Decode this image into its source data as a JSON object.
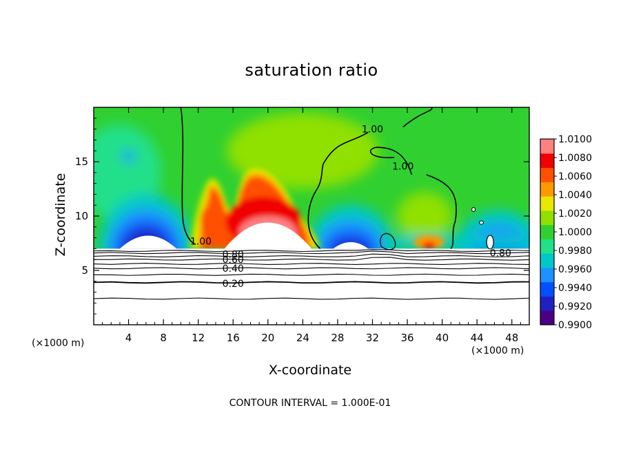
{
  "chart_data": {
    "type": "heatmap",
    "title": "saturation ratio",
    "xlabel": "X-coordinate",
    "ylabel": "Z-coordinate",
    "x_unit": "(×1000 m)",
    "contour_interval": "CONTOUR INTERVAL = 1.000E-01",
    "xlim": [
      0,
      50
    ],
    "ylim": [
      0,
      20
    ],
    "x_ticks": [
      4,
      8,
      12,
      16,
      20,
      24,
      28,
      32,
      36,
      40,
      44,
      48
    ],
    "y_ticks": [
      5,
      10,
      15
    ],
    "colorbar": {
      "min": 0.99,
      "max": 1.01,
      "tick_labels": [
        "1.0100",
        "1.0080",
        "1.0060",
        "1.0040",
        "1.0020",
        "1.0000",
        "0.9980",
        "0.9960",
        "0.9940",
        "0.9920",
        "0.9900"
      ],
      "colors": [
        "#4b0082",
        "#2020c0",
        "#0050ff",
        "#1e90ff",
        "#00c8c8",
        "#20e08a",
        "#30d030",
        "#90e000",
        "#e8e800",
        "#ff9900",
        "#ff5000",
        "#f00000",
        "#ff8080"
      ]
    },
    "contour_labels": [
      {
        "text": "1.00",
        "x": 32,
        "y": 18.0
      },
      {
        "text": "1.00",
        "x": 35.5,
        "y": 14.6
      },
      {
        "text": "1.00",
        "x": 12.3,
        "y": 7.7
      },
      {
        "text": "0.80",
        "x": 46.7,
        "y": 6.6
      },
      {
        "text": "0.80",
        "x": 16,
        "y": 6.5
      },
      {
        "text": "0.60",
        "x": 16,
        "y": 6.0
      },
      {
        "text": "0.40",
        "x": 16,
        "y": 5.2
      },
      {
        "text": "0.20",
        "x": 16,
        "y": 3.8
      }
    ],
    "features": {
      "ground_top_z": 7.0,
      "warm_plume": {
        "x_range": [
          11,
          26
        ],
        "z_peak": 12,
        "max_value": 1.01
      },
      "dry_lobes": [
        {
          "x_range": [
            2,
            10
          ],
          "z_peak": 9.5,
          "min_value": 0.99
        },
        {
          "x_range": [
            26,
            33
          ],
          "z_peak": 8.5,
          "min_value": 0.992
        },
        {
          "x_range": [
            43,
            50
          ],
          "z_peak": 8.0,
          "min_value": 0.994
        }
      ],
      "background_value": 1.0
    }
  }
}
